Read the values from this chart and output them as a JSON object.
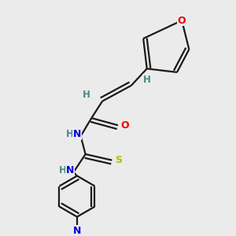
{
  "bg_color": "#ebebeb",
  "atom_colors": {
    "C": "#1a1a1a",
    "H": "#4a8888",
    "N": "#0000dd",
    "O": "#ee0000",
    "S": "#bbbb00"
  },
  "bond_color": "#1a1a1a",
  "bond_width": 1.6,
  "figsize": [
    3.0,
    3.0
  ],
  "dpi": 100
}
